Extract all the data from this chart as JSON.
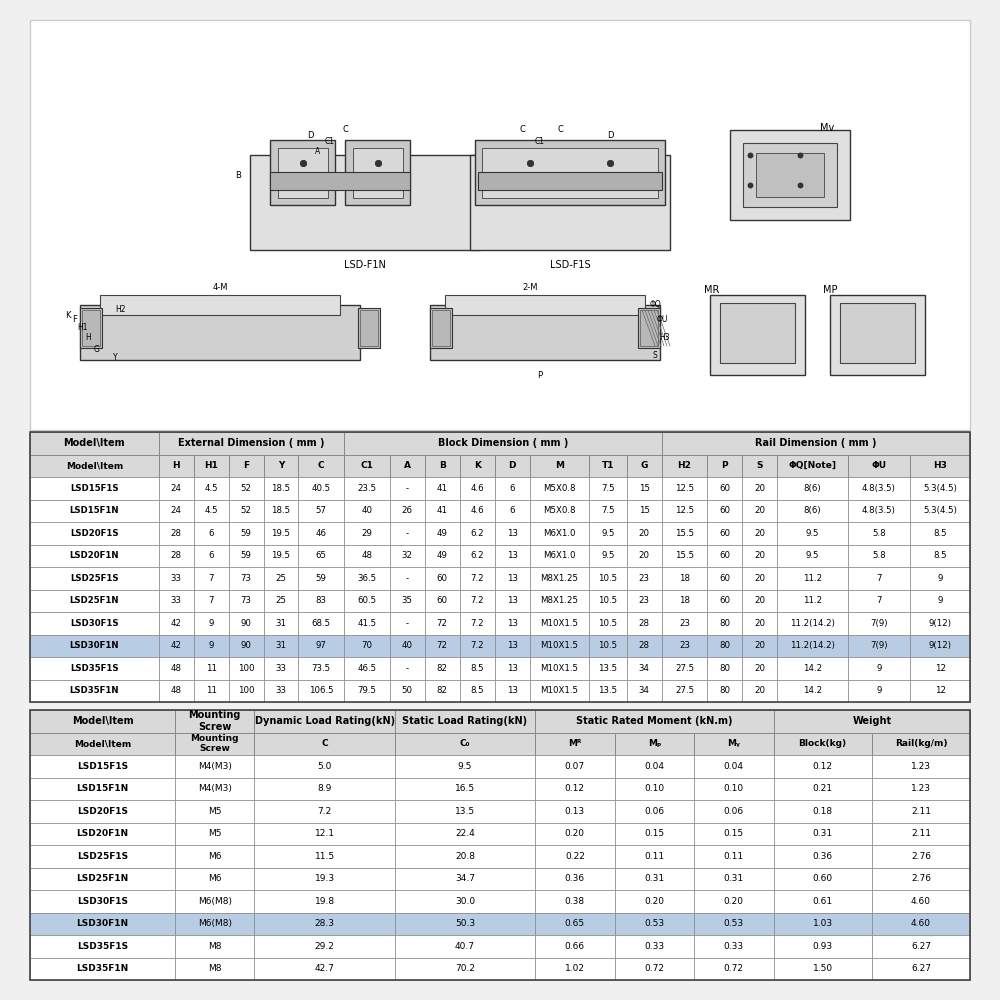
{
  "bg_color": "#f0f0f0",
  "table_bg": "#ffffff",
  "highlight_color": "#b8cce4",
  "header_bg": "#d9d9d9",
  "border_color": "#888888",
  "dark_border": "#444444",
  "text_color": "#111111",
  "table1_title_cols": [
    {
      "label": "Model\\Item",
      "span": 1
    },
    {
      "label": "External Dimension ( mm )",
      "span": 5
    },
    {
      "label": "Block Dimension ( mm )",
      "span": 8
    },
    {
      "label": "Rail Dimension ( mm )",
      "span": 6
    }
  ],
  "table1_span_map": [
    1,
    5,
    8,
    6
  ],
  "table1_sub_cols": [
    "Model\\Item",
    "H",
    "H1",
    "F",
    "Y",
    "C",
    "C1",
    "A",
    "B",
    "K",
    "D",
    "M",
    "T1",
    "G",
    "H2",
    "P",
    "S",
    "ΦQ[Note]",
    "ΦU",
    "H3"
  ],
  "table1_col_widths": [
    1.55,
    0.42,
    0.42,
    0.42,
    0.42,
    0.55,
    0.55,
    0.42,
    0.42,
    0.42,
    0.42,
    0.72,
    0.45,
    0.42,
    0.55,
    0.42,
    0.42,
    0.85,
    0.75,
    0.72
  ],
  "table1_rows": [
    [
      "LSD15F1S",
      "24",
      "4.5",
      "52",
      "18.5",
      "40.5",
      "23.5",
      "-",
      "41",
      "4.6",
      "6",
      "M5X0.8",
      "7.5",
      "15",
      "12.5",
      "60",
      "20",
      "8(6)",
      "4.8(3.5)",
      "5.3(4.5)"
    ],
    [
      "LSD15F1N",
      "24",
      "4.5",
      "52",
      "18.5",
      "57",
      "40",
      "26",
      "41",
      "4.6",
      "6",
      "M5X0.8",
      "7.5",
      "15",
      "12.5",
      "60",
      "20",
      "8(6)",
      "4.8(3.5)",
      "5.3(4.5)"
    ],
    [
      "LSD20F1S",
      "28",
      "6",
      "59",
      "19.5",
      "46",
      "29",
      "-",
      "49",
      "6.2",
      "13",
      "M6X1.0",
      "9.5",
      "20",
      "15.5",
      "60",
      "20",
      "9.5",
      "5.8",
      "8.5"
    ],
    [
      "LSD20F1N",
      "28",
      "6",
      "59",
      "19.5",
      "65",
      "48",
      "32",
      "49",
      "6.2",
      "13",
      "M6X1.0",
      "9.5",
      "20",
      "15.5",
      "60",
      "20",
      "9.5",
      "5.8",
      "8.5"
    ],
    [
      "LSD25F1S",
      "33",
      "7",
      "73",
      "25",
      "59",
      "36.5",
      "-",
      "60",
      "7.2",
      "13",
      "M8X1.25",
      "10.5",
      "23",
      "18",
      "60",
      "20",
      "11.2",
      "7",
      "9"
    ],
    [
      "LSD25F1N",
      "33",
      "7",
      "73",
      "25",
      "83",
      "60.5",
      "35",
      "60",
      "7.2",
      "13",
      "M8X1.25",
      "10.5",
      "23",
      "18",
      "60",
      "20",
      "11.2",
      "7",
      "9"
    ],
    [
      "LSD30F1S",
      "42",
      "9",
      "90",
      "31",
      "68.5",
      "41.5",
      "-",
      "72",
      "7.2",
      "13",
      "M10X1.5",
      "10.5",
      "28",
      "23",
      "80",
      "20",
      "11.2(14.2)",
      "7(9)",
      "9(12)"
    ],
    [
      "LSD30F1N",
      "42",
      "9",
      "90",
      "31",
      "97",
      "70",
      "40",
      "72",
      "7.2",
      "13",
      "M10X1.5",
      "10.5",
      "28",
      "23",
      "80",
      "20",
      "11.2(14.2)",
      "7(9)",
      "9(12)"
    ],
    [
      "LSD35F1S",
      "48",
      "11",
      "100",
      "33",
      "73.5",
      "46.5",
      "-",
      "82",
      "8.5",
      "13",
      "M10X1.5",
      "13.5",
      "34",
      "27.5",
      "80",
      "20",
      "14.2",
      "9",
      "12"
    ],
    [
      "LSD35F1N",
      "48",
      "11",
      "100",
      "33",
      "106.5",
      "79.5",
      "50",
      "82",
      "8.5",
      "13",
      "M10X1.5",
      "13.5",
      "34",
      "27.5",
      "80",
      "20",
      "14.2",
      "9",
      "12"
    ]
  ],
  "table1_highlight_row": 7,
  "table2_title_cols": [
    {
      "label": "Model\\Item",
      "span": 1
    },
    {
      "label": "Mounting\nScrew",
      "span": 1
    },
    {
      "label": "Dynamic Load Rating(kN)",
      "span": 1
    },
    {
      "label": "Static Load Rating(kN)",
      "span": 1
    },
    {
      "label": "Static Rated Moment (kN.m)",
      "span": 3
    },
    {
      "label": "Weight",
      "span": 2
    }
  ],
  "table2_span_map": [
    1,
    1,
    1,
    1,
    3,
    2
  ],
  "table2_sub_cols": [
    "Model\\Item",
    "Mounting\nScrew",
    "C",
    "C₀",
    "Mᴿ",
    "Mₚ",
    "Mᵧ",
    "Block(kg)",
    "Rail(kg/m)"
  ],
  "table2_col_widths": [
    1.55,
    0.85,
    1.5,
    1.5,
    0.85,
    0.85,
    0.85,
    1.05,
    1.05
  ],
  "table2_rows": [
    [
      "LSD15F1S",
      "M4(M3)",
      "5.0",
      "9.5",
      "0.07",
      "0.04",
      "0.04",
      "0.12",
      "1.23"
    ],
    [
      "LSD15F1N",
      "M4(M3)",
      "8.9",
      "16.5",
      "0.12",
      "0.10",
      "0.10",
      "0.21",
      "1.23"
    ],
    [
      "LSD20F1S",
      "M5",
      "7.2",
      "13.5",
      "0.13",
      "0.06",
      "0.06",
      "0.18",
      "2.11"
    ],
    [
      "LSD20F1N",
      "M5",
      "12.1",
      "22.4",
      "0.20",
      "0.15",
      "0.15",
      "0.31",
      "2.11"
    ],
    [
      "LSD25F1S",
      "M6",
      "11.5",
      "20.8",
      "0.22",
      "0.11",
      "0.11",
      "0.36",
      "2.76"
    ],
    [
      "LSD25F1N",
      "M6",
      "19.3",
      "34.7",
      "0.36",
      "0.31",
      "0.31",
      "0.60",
      "2.76"
    ],
    [
      "LSD30F1S",
      "M6(M8)",
      "19.8",
      "30.0",
      "0.38",
      "0.20",
      "0.20",
      "0.61",
      "4.60"
    ],
    [
      "LSD30F1N",
      "M6(M8)",
      "28.3",
      "50.3",
      "0.65",
      "0.53",
      "0.53",
      "1.03",
      "4.60"
    ],
    [
      "LSD35F1S",
      "M8",
      "29.2",
      "40.7",
      "0.66",
      "0.33",
      "0.33",
      "0.93",
      "6.27"
    ],
    [
      "LSD35F1N",
      "M8",
      "42.7",
      "70.2",
      "1.02",
      "0.72",
      "0.72",
      "1.50",
      "6.27"
    ]
  ],
  "table2_highlight_row": 7
}
